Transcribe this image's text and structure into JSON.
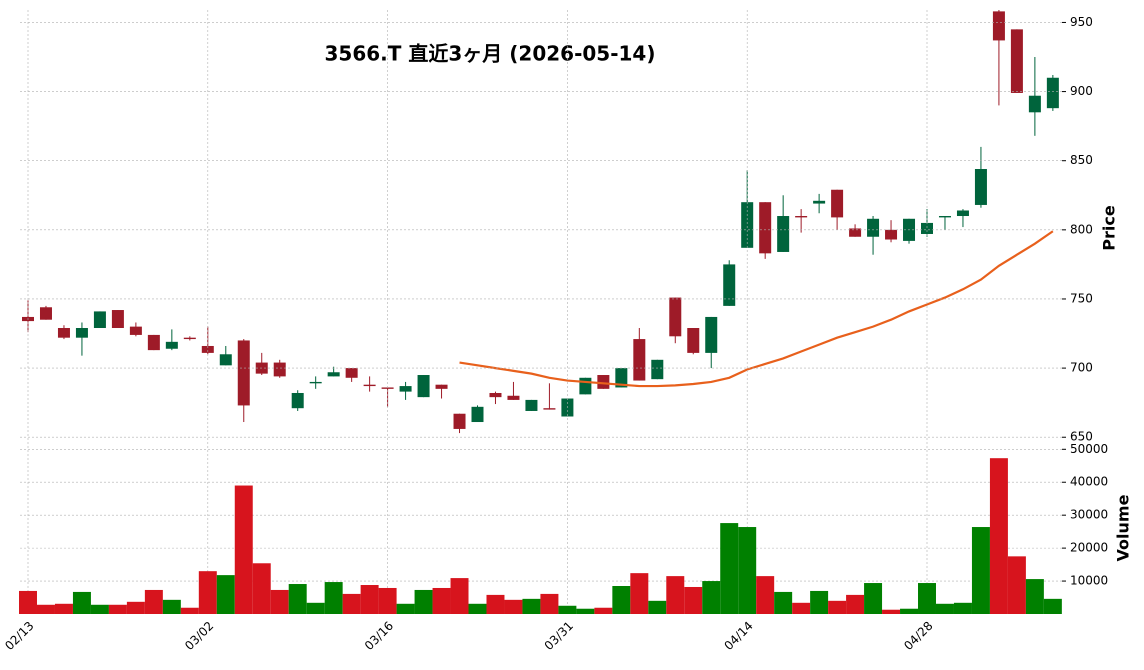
{
  "chart_data": {
    "type": "candlestick",
    "title": "3566.T  直近3ヶ月  (2026-05-14)",
    "categories": [
      "02/13",
      null,
      null,
      null,
      null,
      null,
      null,
      null,
      null,
      null,
      "03/02",
      null,
      null,
      null,
      null,
      null,
      null,
      null,
      null,
      null,
      "03/16",
      null,
      null,
      null,
      null,
      null,
      null,
      null,
      null,
      null,
      "03/31",
      null,
      null,
      null,
      null,
      null,
      null,
      null,
      null,
      null,
      "04/14",
      null,
      null,
      null,
      null,
      null,
      null,
      null,
      null,
      null,
      "04/28",
      null,
      null,
      null,
      null,
      null,
      null,
      null
    ],
    "open": [
      737,
      744,
      729,
      722,
      729,
      742,
      730,
      724,
      714,
      722,
      716,
      702,
      720,
      704,
      704,
      671,
      689,
      694,
      700,
      688,
      686,
      683,
      679,
      688,
      667,
      661,
      682,
      680,
      669,
      671,
      665,
      681,
      695,
      686,
      721,
      692,
      751,
      729,
      711,
      745,
      787,
      820,
      784,
      810,
      819,
      829,
      801,
      795,
      800,
      792,
      797,
      809,
      810,
      818,
      958,
      945,
      885,
      888
    ],
    "high": [
      749,
      745,
      731,
      733,
      741,
      742,
      733,
      724,
      728,
      723,
      730,
      716,
      721,
      711,
      706,
      684,
      694,
      701,
      700,
      694,
      686,
      690,
      695,
      688,
      667,
      673,
      683,
      690,
      677,
      689,
      678,
      693,
      695,
      700,
      729,
      706,
      751,
      729,
      737,
      778,
      843,
      820,
      825,
      815,
      826,
      829,
      804,
      810,
      807,
      808,
      815,
      810,
      815,
      860,
      960,
      945,
      925,
      912
    ],
    "low": [
      726,
      735,
      721,
      709,
      729,
      729,
      723,
      713,
      713,
      720,
      710,
      702,
      661,
      695,
      693,
      669,
      685,
      694,
      690,
      683,
      672,
      677,
      679,
      678,
      653,
      661,
      674,
      677,
      669,
      670,
      665,
      681,
      685,
      686,
      691,
      692,
      718,
      710,
      700,
      745,
      787,
      779,
      784,
      798,
      812,
      800,
      795,
      782,
      791,
      790,
      795,
      800,
      802,
      816,
      890,
      899,
      868,
      886
    ],
    "close": [
      734,
      735,
      722,
      729,
      741,
      729,
      724,
      713,
      719,
      721,
      711,
      710,
      673,
      696,
      694,
      682,
      690,
      697,
      693,
      687,
      685,
      687,
      695,
      685,
      656,
      672,
      679,
      677,
      677,
      670,
      678,
      693,
      685,
      700,
      691,
      706,
      723,
      711,
      737,
      775,
      820,
      783,
      810,
      809,
      821,
      809,
      795,
      808,
      793,
      808,
      805,
      810,
      814,
      844,
      937,
      899,
      897,
      910
    ],
    "up_color": "#00643c",
    "down_color": "#9e1b28",
    "ma": {
      "color": "#e8601c",
      "values": [
        null,
        null,
        null,
        null,
        null,
        null,
        null,
        null,
        null,
        null,
        null,
        null,
        null,
        null,
        null,
        null,
        null,
        null,
        null,
        null,
        null,
        null,
        null,
        null,
        704,
        702,
        700,
        698,
        696,
        693,
        691,
        690,
        689,
        688,
        687,
        687,
        687.5,
        688.5,
        690,
        693,
        699,
        703,
        707,
        712,
        717,
        722,
        726,
        730,
        735,
        741,
        746,
        751,
        757,
        764,
        774,
        782,
        790,
        799
      ]
    },
    "ylabel": "Price",
    "ylim": [
      648,
      959
    ],
    "yticks": [
      650,
      700,
      750,
      800,
      850,
      900,
      950
    ],
    "volume": {
      "ylabel": "Volume",
      "up_color": "#008000",
      "down_color": "#d7141d",
      "values": [
        7000,
        2800,
        3100,
        6700,
        2800,
        2800,
        3700,
        7300,
        4300,
        1900,
        13000,
        11800,
        39000,
        15400,
        7300,
        9100,
        3400,
        9700,
        6100,
        8800,
        7900,
        3100,
        7300,
        7900,
        10900,
        3100,
        5800,
        4300,
        4600,
        6100,
        2500,
        1600,
        1900,
        8500,
        12400,
        4000,
        11500,
        8200,
        10000,
        27600,
        26400,
        11500,
        6700,
        3400,
        7000,
        4000,
        5800,
        9400,
        1300,
        1600,
        9400,
        3100,
        3400,
        26400,
        47300,
        17500,
        10600,
        4600
      ],
      "ylim": [
        0,
        51000
      ],
      "yticks": [
        10000,
        20000,
        30000,
        40000,
        50000
      ]
    },
    "grid": true
  }
}
